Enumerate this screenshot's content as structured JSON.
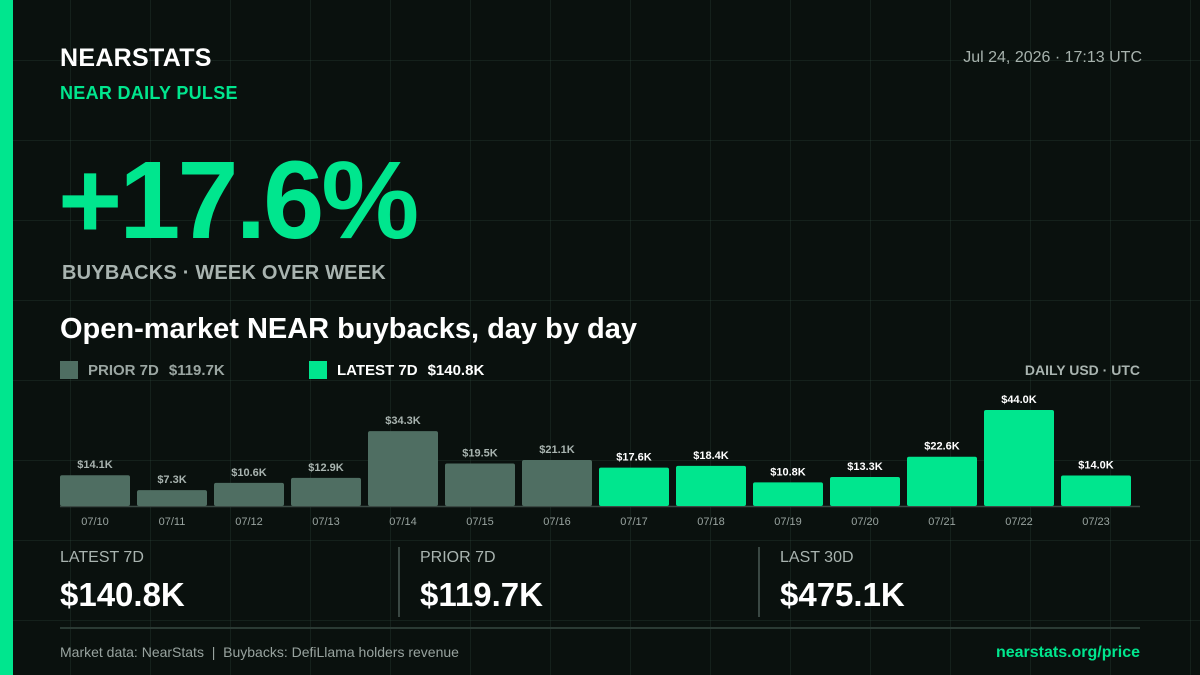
{
  "header": {
    "brand": "NEARSTATS",
    "subtitle": "NEAR DAILY PULSE",
    "timestamp": "Jul 24, 2026 · 17:13 UTC"
  },
  "headline": {
    "value": "+17.6%",
    "label": "BUYBACKS · WEEK OVER WEEK"
  },
  "legend": {
    "prior_label": "PRIOR 7D",
    "prior_value": "$119.7K",
    "latest_label": "LATEST 7D",
    "latest_value": "$140.8K",
    "units": "DAILY USD · UTC"
  },
  "colors": {
    "accent": "#00e68e",
    "prior": "#4f6e62",
    "background": "#0a110e"
  },
  "chart_data": {
    "type": "bar",
    "title": "Open-market NEAR buybacks, day by day",
    "categories": [
      "07/10",
      "07/11",
      "07/12",
      "07/13",
      "07/14",
      "07/15",
      "07/16",
      "07/17",
      "07/18",
      "07/19",
      "07/20",
      "07/21",
      "07/22",
      "07/23"
    ],
    "values": [
      14.1,
      7.3,
      10.6,
      12.9,
      34.3,
      19.5,
      21.1,
      17.6,
      18.4,
      10.8,
      13.3,
      22.6,
      44.0,
      14.0
    ],
    "labels": [
      "$14.1K",
      "$7.3K",
      "$10.6K",
      "$12.9K",
      "$34.3K",
      "$19.5K",
      "$21.1K",
      "$17.6K",
      "$18.4K",
      "$10.8K",
      "$13.3K",
      "$22.6K",
      "$44.0K",
      "$14.0K"
    ],
    "series_group": [
      "prior",
      "prior",
      "prior",
      "prior",
      "prior",
      "prior",
      "prior",
      "latest",
      "latest",
      "latest",
      "latest",
      "latest",
      "latest",
      "latest"
    ],
    "value_unit": "thousand USD",
    "ylim": [
      0,
      44.0
    ],
    "grid": false,
    "legend_position": "top-left"
  },
  "stats": [
    {
      "label": "LATEST 7D",
      "value": "$140.8K"
    },
    {
      "label": "PRIOR 7D",
      "value": "$119.7K"
    },
    {
      "label": "LAST 30D",
      "value": "$475.1K"
    }
  ],
  "footer": {
    "source": "Market data: NearStats  |  Buybacks: DefiLlama holders revenue",
    "url": "nearstats.org/price"
  }
}
